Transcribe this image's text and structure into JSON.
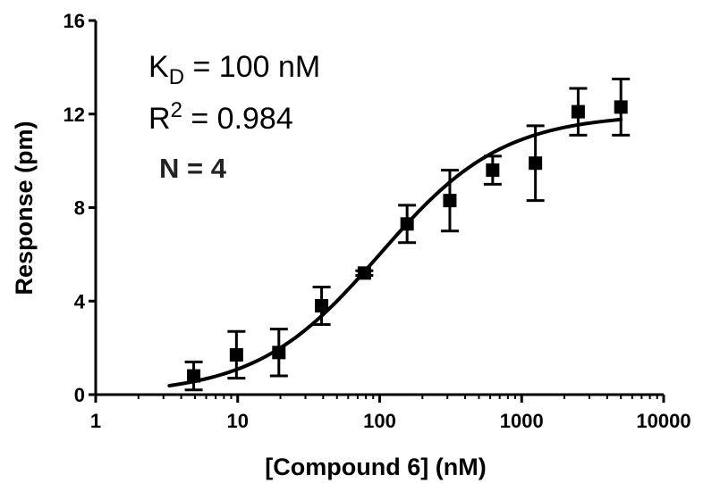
{
  "chart_data": {
    "type": "scatter",
    "title": "",
    "xlabel": "[Compound 6] (nM)",
    "ylabel": "Response (pm)",
    "x_scale": "log",
    "xlim": [
      1,
      10000
    ],
    "ylim": [
      0,
      16
    ],
    "x_ticks": [
      1,
      10,
      100,
      1000,
      10000
    ],
    "x_tick_labels": [
      "1",
      "10",
      "100",
      "1000",
      "10000"
    ],
    "y_ticks": [
      0,
      4,
      8,
      12,
      16
    ],
    "y_tick_labels": [
      "0",
      "4",
      "8",
      "12",
      "16"
    ],
    "grid": false,
    "marker_color": "#000000",
    "points": [
      {
        "x": 4.9,
        "y": 0.8,
        "err": 0.6
      },
      {
        "x": 9.8,
        "y": 1.7,
        "err": 1.0
      },
      {
        "x": 19.5,
        "y": 1.8,
        "err": 1.0
      },
      {
        "x": 39,
        "y": 3.8,
        "err": 0.8
      },
      {
        "x": 78,
        "y": 5.2,
        "err": 0.1
      },
      {
        "x": 156,
        "y": 7.3,
        "err": 0.8
      },
      {
        "x": 312,
        "y": 8.3,
        "err": 1.3
      },
      {
        "x": 625,
        "y": 9.6,
        "err": 0.6
      },
      {
        "x": 1250,
        "y": 9.9,
        "err": 1.6
      },
      {
        "x": 2500,
        "y": 12.1,
        "err": 1.0
      },
      {
        "x": 5000,
        "y": 12.3,
        "err": 1.2
      }
    ],
    "fit": {
      "type": "one-site binding",
      "bmax": 12,
      "kd": 100,
      "x_range": [
        3.3,
        5000
      ]
    },
    "annotations": {
      "kd_main": "K",
      "kd_sub": "D",
      "kd_rest": " = 100 nM",
      "r2_main": "R",
      "r2_sup": "2",
      "r2_rest": " = 0.984",
      "n_text": "N = 4"
    }
  }
}
